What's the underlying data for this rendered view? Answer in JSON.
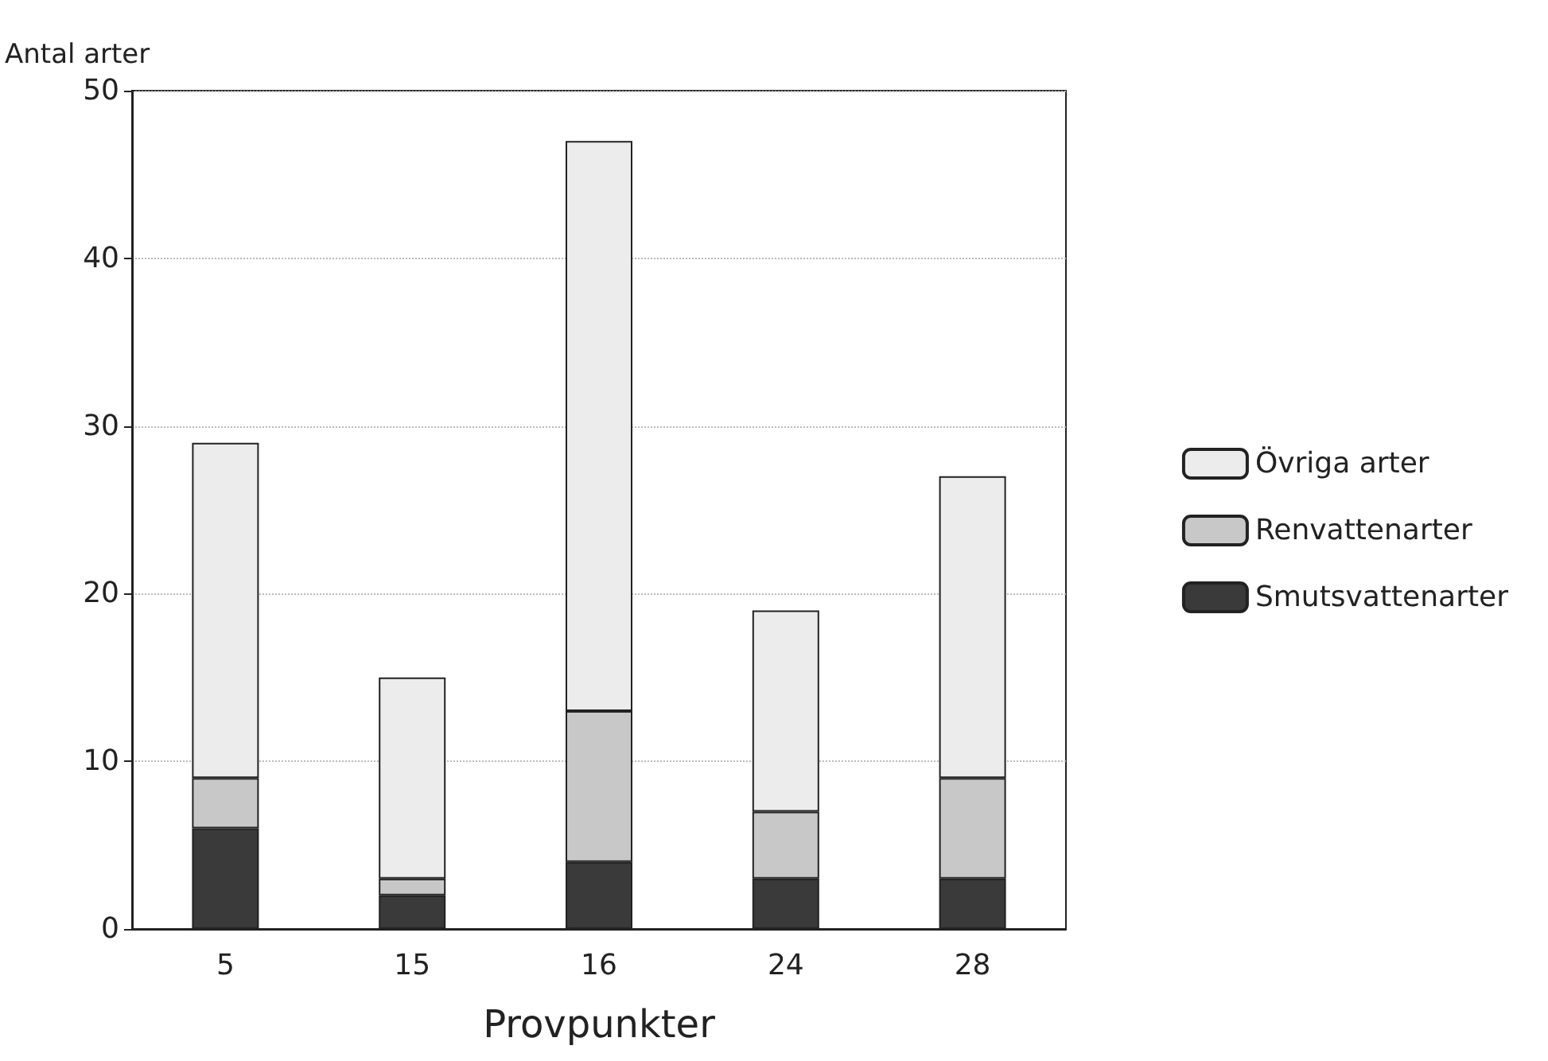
{
  "chart_data": {
    "type": "bar",
    "xlabel": "Provpunkter",
    "ylabel": "Antal arter",
    "categories": [
      "5",
      "15",
      "16",
      "24",
      "28"
    ],
    "stacked": true,
    "series": [
      {
        "name": "Smutsvattenarter",
        "color": "#3a3a3a",
        "values": [
          6,
          2,
          4,
          3,
          3
        ]
      },
      {
        "name": "Renvattenarter",
        "color": "#c8c8c8",
        "values": [
          3,
          1,
          9,
          4,
          6
        ]
      },
      {
        "name": "Övriga arter",
        "color": "#ececec",
        "values": [
          20,
          12,
          34,
          12,
          18
        ]
      }
    ],
    "ylim": [
      0,
      50
    ],
    "yticks": [
      0,
      10,
      20,
      30,
      40,
      50
    ],
    "grid": "y",
    "legend": "right"
  }
}
